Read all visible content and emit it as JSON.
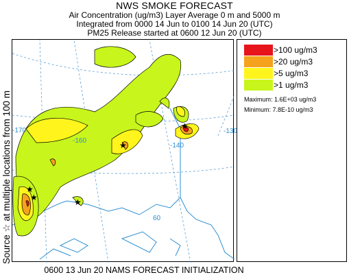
{
  "header": {
    "title": "NWS SMOKE FORECAST",
    "line1": "Air Concentration (ug/m3) Layer Average    0 m and  5000 m",
    "line2": "Integrated from 0000 14 Jun to 0100 14 Jun 20 (UTC)",
    "line3": "PM25 Release started at 0600 12 Jun 20 (UTC)"
  },
  "side_label": "Source ☆ at multiple locations  from   100 m",
  "legend": {
    "items": [
      {
        "label": ">100 ug/m3",
        "color": "#e8141c"
      },
      {
        "label": ">20 ug/m3",
        "color": "#f5a21c"
      },
      {
        "label": ">5 ug/m3",
        "color": "#fff51c"
      },
      {
        "label": ">1 ug/m3",
        "color": "#c8f51c"
      }
    ],
    "maximum": "Maximum: 1.6E+03 ug/m3",
    "minimum": "Minimum: 7.8E-10 ug/m3"
  },
  "map": {
    "longitude_labels": [
      "-170",
      "-140",
      "-130",
      "-160",
      "60"
    ],
    "colors": {
      "land_line": "#2e8fd0",
      "grid": "#5aa0d8",
      "contour": "#000000"
    }
  },
  "footer": "0600 13 Jun 20 NAMS FORECAST INITIALIZATION"
}
